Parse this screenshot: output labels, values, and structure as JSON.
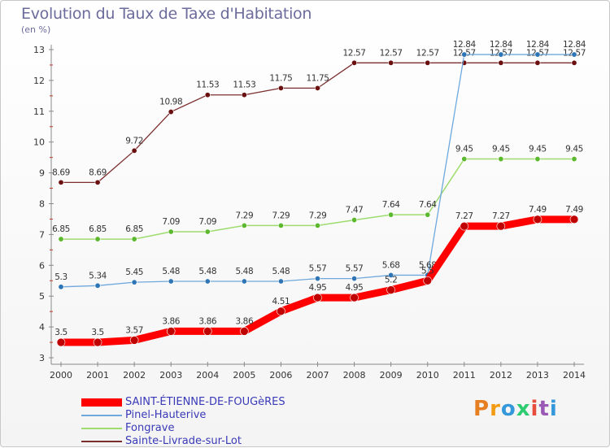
{
  "title": "Evolution du Taux de Taxe d'Habitation",
  "unit_label": "(en %)",
  "logo_text": "Proxiti",
  "colors": {
    "axis": "#8a8a8a",
    "tick_mark": "#c0392b",
    "label": "#333333",
    "legend_text": "#3a3ab8"
  },
  "chart_data": {
    "type": "line",
    "x": [
      "2000",
      "2001",
      "2002",
      "2003",
      "2004",
      "2005",
      "2006",
      "2007",
      "2008",
      "2009",
      "2010",
      "2011",
      "2012",
      "2013",
      "2014"
    ],
    "yticks": [
      3,
      4,
      5,
      6,
      7,
      8,
      9,
      10,
      11,
      12,
      13
    ],
    "ylim": [
      3,
      13
    ],
    "grid": false,
    "legend_position": "bottom",
    "series": [
      {
        "name": "SAINT-ÉTIENNE-DE-FOUGèRES",
        "color": "#ff0000",
        "marker_color": "#c00000",
        "width": 9,
        "values": [
          3.5,
          3.5,
          3.57,
          3.86,
          3.86,
          3.86,
          4.51,
          4.95,
          4.95,
          5.2,
          5.5,
          7.27,
          7.27,
          7.49,
          7.49
        ],
        "labels": [
          "3.5",
          "3.5",
          "3.57",
          "3.86",
          "3.86",
          "3.86",
          "4.51",
          "4.95",
          "4.95",
          "5.2",
          "5.5",
          "7.27",
          "7.27",
          "7.49",
          "7.49"
        ]
      },
      {
        "name": "Pinel-Hauterive",
        "color": "#6fa8dc",
        "marker_color": "#2e75b6",
        "width": 1.3,
        "values": [
          5.3,
          5.34,
          5.45,
          5.48,
          5.48,
          5.48,
          5.48,
          5.57,
          5.57,
          5.68,
          5.68,
          12.84,
          12.84,
          12.84,
          12.84
        ],
        "labels": [
          "5.3",
          "5.34",
          "5.45",
          "5.48",
          "5.48",
          "5.48",
          "5.48",
          "5.57",
          "5.57",
          "5.68",
          "5.68",
          "12.84",
          "12.84",
          "12.84",
          "12.84"
        ]
      },
      {
        "name": "Fongrave",
        "color": "#9fdc6f",
        "marker_color": "#5cb82e",
        "width": 1.5,
        "values": [
          6.85,
          6.85,
          6.85,
          7.09,
          7.09,
          7.29,
          7.29,
          7.29,
          7.47,
          7.64,
          7.64,
          9.45,
          9.45,
          9.45,
          9.45
        ],
        "labels": [
          "6.85",
          "6.85",
          "6.85",
          "7.09",
          "7.09",
          "7.29",
          "7.29",
          "7.29",
          "7.47",
          "7.64",
          "7.64",
          "9.45",
          "9.45",
          "9.45",
          "9.45"
        ]
      },
      {
        "name": "Sainte-Livrade-sur-Lot",
        "color": "#7a2e2e",
        "marker_color": "#6b1010",
        "width": 1.3,
        "values": [
          8.69,
          8.69,
          9.72,
          10.98,
          11.53,
          11.53,
          11.75,
          11.75,
          12.57,
          12.57,
          12.57,
          12.57,
          12.57,
          12.57,
          12.57
        ],
        "labels": [
          "8.69",
          "8.69",
          "9.72",
          "10.98",
          "11.53",
          "11.53",
          "11.75",
          "11.75",
          "12.57",
          "12.57",
          "12.57",
          "12.57",
          "12.57",
          "12.57",
          "12.57"
        ]
      }
    ]
  }
}
